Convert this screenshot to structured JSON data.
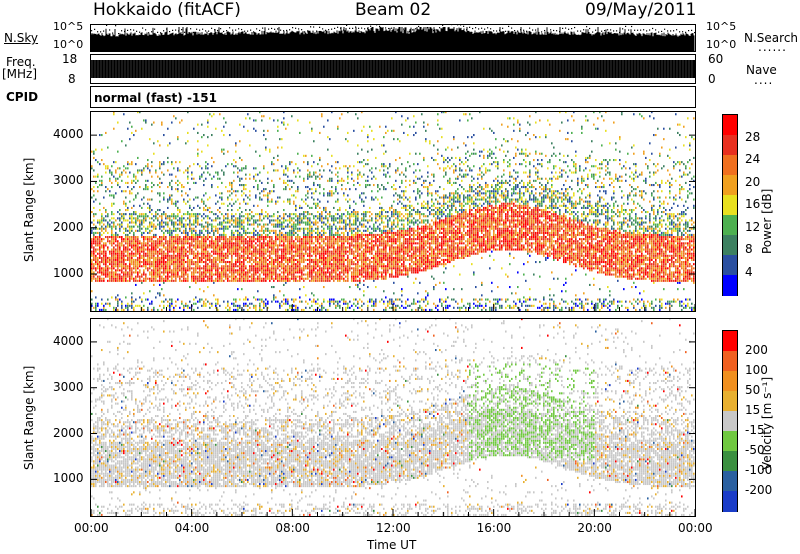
{
  "header": {
    "station": "Hokkaido (fitACF)",
    "beam": "Beam 02",
    "date": "09/May/2011"
  },
  "noise_panel": {
    "left_label": "N.Sky",
    "right_label": "N.Search",
    "y_top": "10^5",
    "y_bottom": "10^0",
    "y_top_right": "10^5",
    "y_bottom_right": "10^0"
  },
  "freq_panel": {
    "left_label_1": "Freq.",
    "left_label_2": "[MHz]",
    "cpid_label": "CPID",
    "y_top": "18",
    "y_bottom": "8",
    "right_top": "60",
    "right_bottom": "0",
    "right_label": "Nave"
  },
  "cpid_panel": {
    "text": "normal (fast) -151"
  },
  "colors": {
    "power": [
      "#0000ff",
      "#2a4fa0",
      "#3c8060",
      "#4db050",
      "#e8e020",
      "#f0a020",
      "#f07020",
      "#e83020",
      "#ff0000"
    ],
    "velocity": [
      "#1a3cc8",
      "#2a60a0",
      "#3a9040",
      "#70c840",
      "#c8c8c8",
      "#e8b030",
      "#f09020",
      "#f06020",
      "#ff0000"
    ]
  },
  "chart_data": [
    {
      "type": "heatmap",
      "name": "power",
      "ylabel": "Slant Range [km]",
      "yticks": [
        "4000",
        "3000",
        "2000",
        "1000"
      ],
      "xlim": [
        0,
        24
      ],
      "ylim": [
        200,
        4500
      ],
      "colorbar_label": "Power [dB]",
      "colorbar_ticks": [
        "28",
        "24",
        "20",
        "16",
        "12",
        "8",
        "4"
      ]
    },
    {
      "type": "heatmap",
      "name": "velocity",
      "ylabel": "Slant Range [km]",
      "yticks": [
        "4000",
        "3000",
        "2000",
        "1000"
      ],
      "xlim": [
        0,
        24
      ],
      "ylim": [
        200,
        4500
      ],
      "colorbar_label": "Velocity [m s⁻¹]",
      "colorbar_ticks": [
        "200",
        "100",
        "50",
        "15",
        "-15",
        "-50",
        "-100",
        "-200"
      ],
      "xlabel": "Time UT",
      "xticks": [
        "00:00",
        "04:00",
        "08:00",
        "12:00",
        "16:00",
        "20:00",
        "00:00"
      ]
    }
  ]
}
